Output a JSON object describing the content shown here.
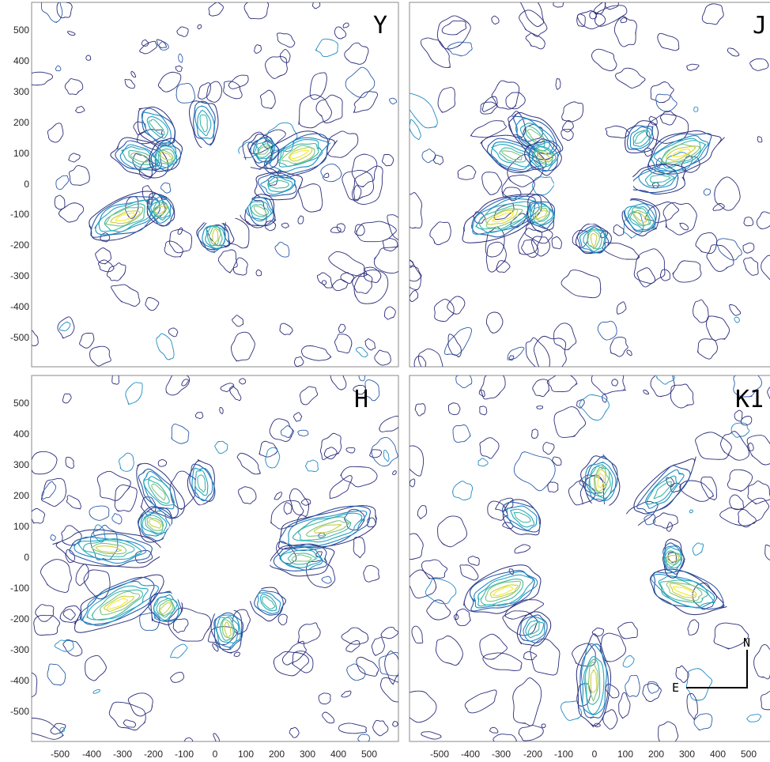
{
  "chart_data": [
    {
      "type": "contour",
      "panel_label": "Y",
      "xlim": [
        -580,
        580
      ],
      "ylim": [
        -580,
        580
      ],
      "yticks": [
        "500",
        "400",
        "300",
        "200",
        "100",
        "0",
        "-100",
        "-200",
        "-300",
        "-400",
        "-500"
      ],
      "xticks": [],
      "occulter_radius": 125,
      "features": [
        {
          "angle": 20,
          "r0": 185,
          "r1": 380,
          "intensity": 1.0
        },
        {
          "angle": 200,
          "r0": 185,
          "r1": 420,
          "intensity": 1.0
        },
        {
          "angle": 160,
          "r0": 180,
          "r1": 330,
          "intensity": 0.7
        },
        {
          "angle": 135,
          "r0": 190,
          "r1": 330,
          "intensity": 0.6
        },
        {
          "angle": 205,
          "r0": 165,
          "r1": 215,
          "intensity": 0.9
        },
        {
          "angle": 150,
          "r0": 150,
          "r1": 210,
          "intensity": 0.9
        },
        {
          "angle": 0,
          "r0": 140,
          "r1": 260,
          "intensity": 0.6
        },
        {
          "angle": 270,
          "r0": 130,
          "r1": 200,
          "intensity": 0.8
        },
        {
          "angle": 330,
          "r0": 130,
          "r1": 200,
          "intensity": 0.7
        },
        {
          "angle": 35,
          "r0": 160,
          "r1": 220,
          "intensity": 0.7
        },
        {
          "angle": 100,
          "r0": 140,
          "r1": 260,
          "intensity": 0.5
        }
      ]
    },
    {
      "type": "contour",
      "panel_label": "J",
      "xlim": [
        -580,
        580
      ],
      "ylim": [
        -580,
        580
      ],
      "yticks": [],
      "xticks": [],
      "occulter_radius": 125,
      "features": [
        {
          "angle": 20,
          "r0": 185,
          "r1": 400,
          "intensity": 1.0
        },
        {
          "angle": 200,
          "r0": 175,
          "r1": 430,
          "intensity": 1.0
        },
        {
          "angle": 160,
          "r0": 185,
          "r1": 360,
          "intensity": 0.7
        },
        {
          "angle": 140,
          "r0": 160,
          "r1": 320,
          "intensity": 0.7
        },
        {
          "angle": 210,
          "r0": 160,
          "r1": 220,
          "intensity": 0.9
        },
        {
          "angle": 150,
          "r0": 140,
          "r1": 220,
          "intensity": 0.9
        },
        {
          "angle": 5,
          "r0": 130,
          "r1": 280,
          "intensity": 0.6
        },
        {
          "angle": 270,
          "r0": 140,
          "r1": 210,
          "intensity": 0.8
        },
        {
          "angle": 325,
          "r0": 130,
          "r1": 230,
          "intensity": 0.8
        },
        {
          "angle": 45,
          "r0": 170,
          "r1": 250,
          "intensity": 0.6
        }
      ]
    },
    {
      "type": "contour",
      "panel_label": "H",
      "xlim": [
        -580,
        580
      ],
      "ylim": [
        -580,
        580
      ],
      "yticks": [
        "500",
        "400",
        "300",
        "200",
        "100",
        "0",
        "-100",
        "-200",
        "-300",
        "-400",
        "-500"
      ],
      "xticks": [
        "-500",
        "-400",
        "-300",
        "-200",
        "-100",
        "0",
        "100",
        "200",
        "300",
        "400",
        "500"
      ],
      "occulter_radius": 175,
      "features": [
        {
          "angle": 15,
          "r0": 200,
          "r1": 530,
          "intensity": 0.9
        },
        {
          "angle": 205,
          "r0": 200,
          "r1": 480,
          "intensity": 1.0
        },
        {
          "angle": 175,
          "r0": 195,
          "r1": 480,
          "intensity": 0.8
        },
        {
          "angle": 130,
          "r0": 190,
          "r1": 360,
          "intensity": 0.7
        },
        {
          "angle": 225,
          "r0": 185,
          "r1": 260,
          "intensity": 0.9
        },
        {
          "angle": 150,
          "r0": 180,
          "r1": 260,
          "intensity": 0.9
        },
        {
          "angle": 0,
          "r0": 185,
          "r1": 360,
          "intensity": 0.7
        },
        {
          "angle": 280,
          "r0": 180,
          "r1": 280,
          "intensity": 0.8
        },
        {
          "angle": 320,
          "r0": 180,
          "r1": 260,
          "intensity": 0.6
        },
        {
          "angle": 100,
          "r0": 185,
          "r1": 300,
          "intensity": 0.5
        }
      ]
    },
    {
      "type": "contour",
      "panel_label": "K1",
      "xlim": [
        -580,
        580
      ],
      "ylim": [
        -580,
        580
      ],
      "yticks": [],
      "xticks": [
        "-500",
        "-400",
        "-300",
        "-200",
        "-100",
        "0",
        "100",
        "200",
        "300",
        "400",
        "500"
      ],
      "occulter_radius": 175,
      "compass": {
        "north_label": "N",
        "east_label": "E"
      },
      "features": [
        {
          "angle": 85,
          "r0": 185,
          "r1": 310,
          "intensity": 1.0
        },
        {
          "angle": 200,
          "r0": 185,
          "r1": 420,
          "intensity": 1.0
        },
        {
          "angle": 340,
          "r0": 185,
          "r1": 420,
          "intensity": 1.0
        },
        {
          "angle": 0,
          "r0": 230,
          "r1": 270,
          "intensity": 0.8
        },
        {
          "angle": 270,
          "r0": 260,
          "r1": 520,
          "intensity": 0.8
        },
        {
          "angle": 150,
          "r0": 200,
          "r1": 320,
          "intensity": 0.6
        },
        {
          "angle": 45,
          "r0": 200,
          "r1": 420,
          "intensity": 0.6
        },
        {
          "angle": 230,
          "r0": 250,
          "r1": 330,
          "intensity": 0.6
        }
      ]
    }
  ],
  "colors": {
    "levels": [
      "#2b2d7a",
      "#2a5aa8",
      "#1f8ac4",
      "#26a6bd",
      "#3fb9a6",
      "#7ec47e",
      "#c9cf45",
      "#f3e92a"
    ],
    "axis": "#808080",
    "tick_text": "#262626"
  }
}
